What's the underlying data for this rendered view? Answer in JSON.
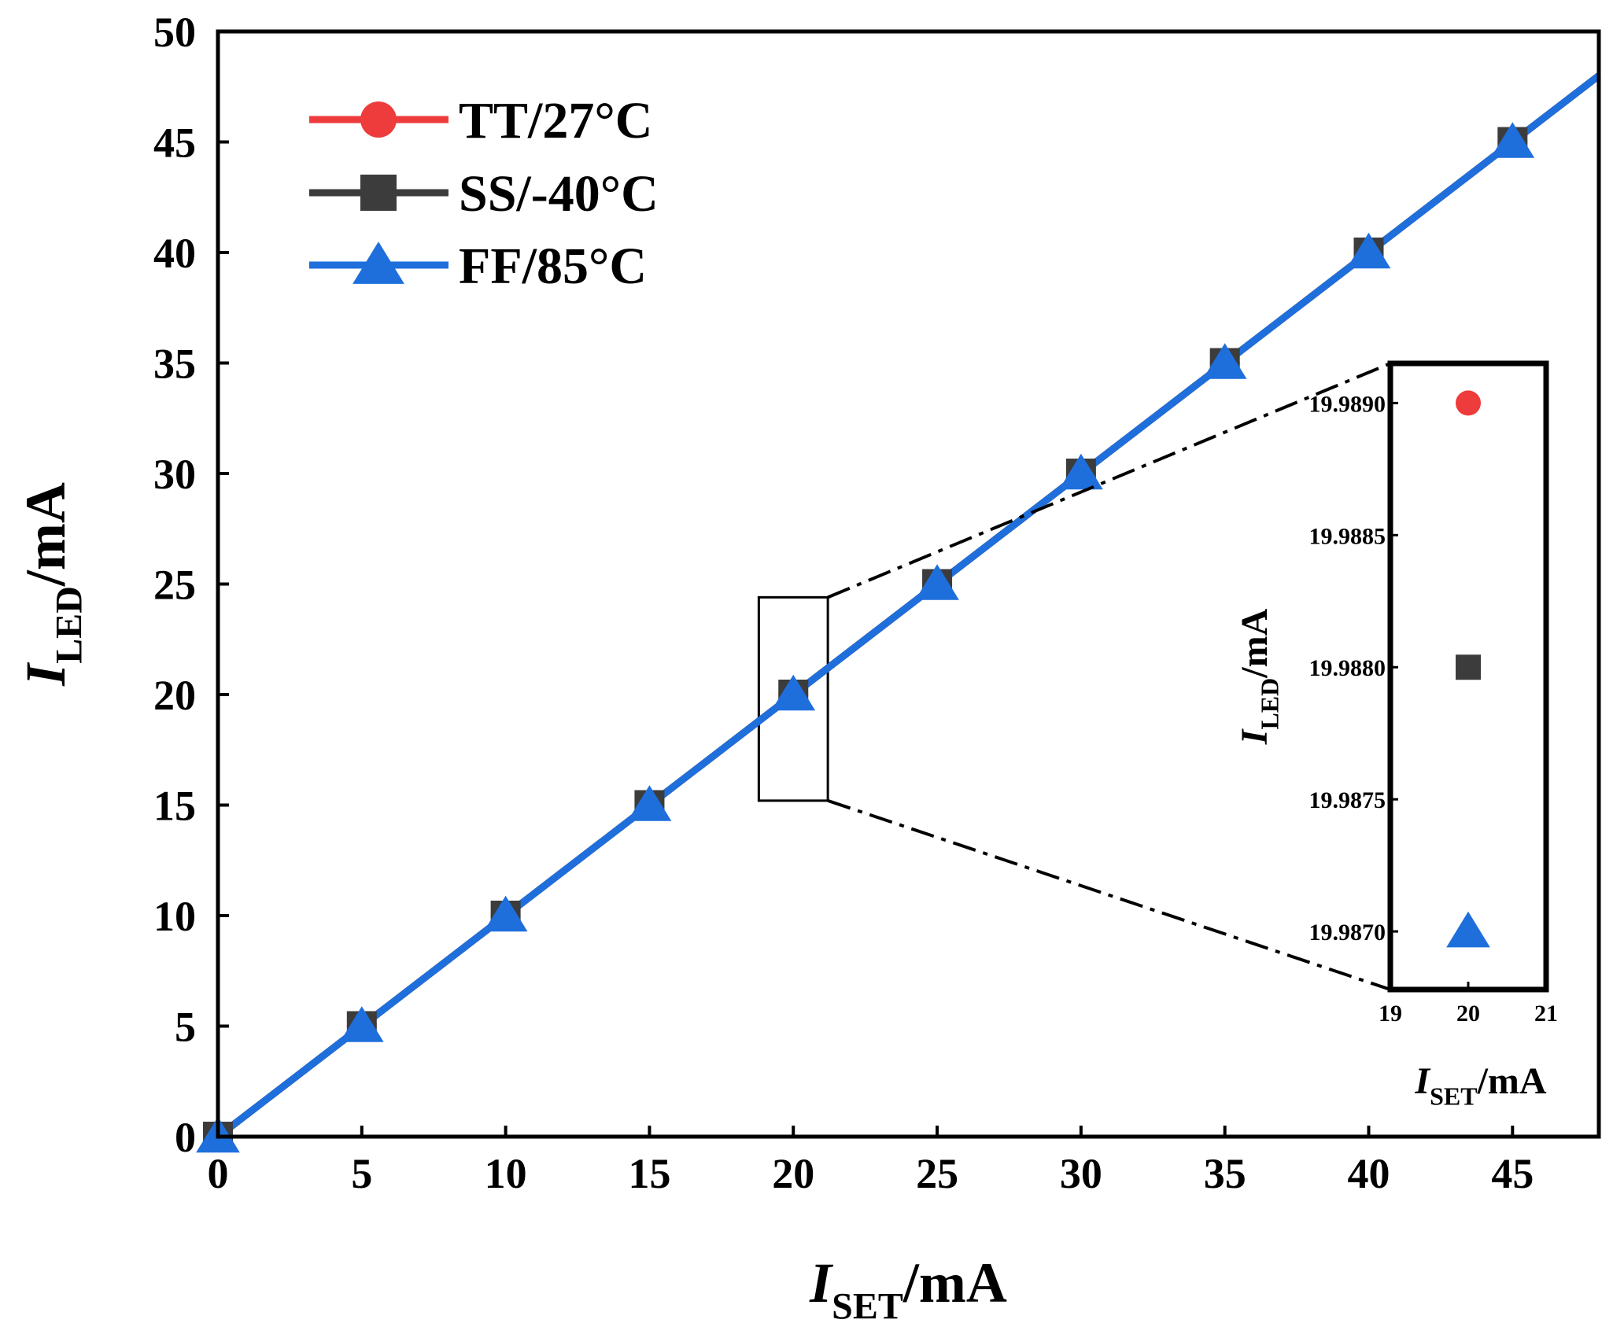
{
  "colors": {
    "tt": "#ee3b3b",
    "ss": "#3c3c3c",
    "ff": "#1e6fdc",
    "axis": "#000000"
  },
  "legend": {
    "items": [
      {
        "key": "tt",
        "label": "TT/27°C",
        "marker": "circle"
      },
      {
        "key": "ss",
        "label": "SS/-40°C",
        "marker": "square"
      },
      {
        "key": "ff",
        "label": "FF/85°C",
        "marker": "triangle"
      }
    ]
  },
  "chart_data": [
    {
      "type": "line",
      "xlabel": {
        "main": "I",
        "sub": "SET",
        "unit": "/mA"
      },
      "ylabel": {
        "main": "I",
        "sub": "LED",
        "unit": "/mA"
      },
      "xlim": [
        0,
        48
      ],
      "ylim": [
        0,
        50
      ],
      "x_ticks": [
        0,
        5,
        10,
        15,
        20,
        25,
        30,
        35,
        40,
        45
      ],
      "y_ticks": [
        0,
        5,
        10,
        15,
        20,
        25,
        30,
        35,
        40,
        45,
        50
      ],
      "x": [
        0,
        5,
        10,
        15,
        20,
        25,
        30,
        35,
        40,
        45,
        48
      ],
      "series": [
        {
          "name": "TT/27°C",
          "key": "tt",
          "values": [
            0,
            5,
            10,
            15,
            20,
            25,
            30,
            35,
            40,
            45,
            48
          ]
        },
        {
          "name": "SS/-40°C",
          "key": "ss",
          "values": [
            0,
            5,
            10,
            15,
            20,
            25,
            30,
            35,
            40,
            45,
            48
          ]
        },
        {
          "name": "FF/85°C",
          "key": "ff",
          "values": [
            0,
            5,
            10,
            15,
            20,
            25,
            30,
            35,
            40,
            45,
            48
          ]
        }
      ],
      "marker_x": [
        0,
        5,
        10,
        15,
        20,
        25,
        30,
        35,
        40,
        45
      ],
      "zoom_region": {
        "x": [
          18.8,
          21.2
        ],
        "y": [
          15.2,
          24.4
        ]
      },
      "legend_position": "top-left",
      "grid": false
    },
    {
      "type": "scatter",
      "role": "inset",
      "xlabel": {
        "main": "I",
        "sub": "SET",
        "unit": "/mA"
      },
      "ylabel": {
        "main": "I",
        "sub": "LED",
        "unit": "/mA"
      },
      "xlim": [
        19,
        21
      ],
      "ylim": [
        19.98678,
        19.98915
      ],
      "x_ticks": [
        "19",
        "20",
        "21"
      ],
      "y_ticks": [
        "19.9870",
        "19.9875",
        "19.9880",
        "19.9885",
        "19.9890"
      ],
      "points": [
        {
          "series": "TT/27°C",
          "key": "tt",
          "marker": "circle",
          "x": 20,
          "y": 19.989
        },
        {
          "series": "SS/-40°C",
          "key": "ss",
          "marker": "square",
          "x": 20,
          "y": 19.988
        },
        {
          "series": "FF/85°C",
          "key": "ff",
          "marker": "triangle",
          "x": 20,
          "y": 19.987
        }
      ]
    }
  ]
}
